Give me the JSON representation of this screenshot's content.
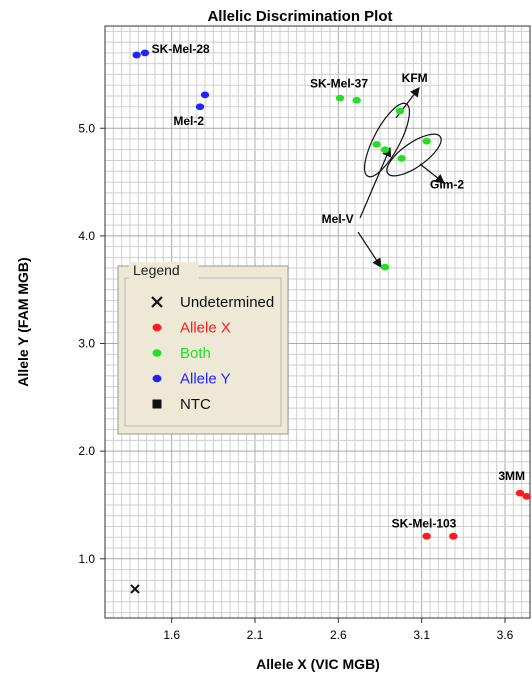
{
  "chart_data": {
    "type": "scatter",
    "title": "Allelic Discrimination Plot",
    "xlabel": "Allele X (VIC MGB)",
    "ylabel": "Allele Y (FAM MGB)",
    "xlim": [
      1.2,
      3.75
    ],
    "ylim": [
      0.45,
      5.95
    ],
    "xticks": [
      "1.6",
      "2.1",
      "2.6",
      "3.1",
      "3.6"
    ],
    "yticks": [
      "1.0",
      "2.0",
      "3.0",
      "4.0",
      "5.0"
    ],
    "grid": true,
    "legend": {
      "title": "Legend",
      "placement": "center-left",
      "items": [
        {
          "label": "Undetermined",
          "color": "#111111",
          "marker": "x"
        },
        {
          "label": "Allele X",
          "color": "#ff1a1a",
          "marker": "dot"
        },
        {
          "label": "Both",
          "color": "#22e022",
          "marker": "dot"
        },
        {
          "label": "Allele Y",
          "color": "#2222ff",
          "marker": "dot"
        },
        {
          "label": "NTC",
          "color": "#111111",
          "marker": "square"
        }
      ]
    },
    "series": [
      {
        "category": "Undetermined",
        "color": "#111111",
        "marker": "x",
        "points": [
          [
            1.38,
            0.72
          ]
        ]
      },
      {
        "category": "Allele X",
        "color": "#ff1a1a",
        "marker": "dot",
        "points": [
          [
            3.13,
            1.21
          ],
          [
            3.29,
            1.21
          ],
          [
            3.69,
            1.61
          ],
          [
            3.73,
            1.58
          ]
        ]
      },
      {
        "category": "Both",
        "color": "#22e022",
        "marker": "dot",
        "points": [
          [
            2.61,
            5.28
          ],
          [
            2.71,
            5.26
          ],
          [
            2.97,
            5.16
          ],
          [
            2.83,
            4.85
          ],
          [
            2.88,
            4.8
          ],
          [
            3.13,
            4.88
          ],
          [
            2.98,
            4.72
          ],
          [
            2.88,
            3.71
          ]
        ]
      },
      {
        "category": "Allele Y",
        "color": "#2222ff",
        "marker": "dot",
        "points": [
          [
            1.39,
            5.68
          ],
          [
            1.44,
            5.7
          ],
          [
            1.77,
            5.2
          ],
          [
            1.8,
            5.31
          ]
        ]
      }
    ],
    "annotations": [
      {
        "text": "SK-Mel-28",
        "x": 1.48,
        "y": 5.7
      },
      {
        "text": "Mel-2",
        "x": 1.61,
        "y": 5.03
      },
      {
        "text": "SK-Mel-37",
        "x": 2.43,
        "y": 5.38
      },
      {
        "text": "KFM",
        "x": 2.98,
        "y": 5.43
      },
      {
        "text": "Glm-2",
        "x": 3.15,
        "y": 4.44
      },
      {
        "text": "Mel-V",
        "x": 2.5,
        "y": 4.12
      },
      {
        "text": "3MM",
        "x": 3.56,
        "y": 1.73
      },
      {
        "text": "SK-Mel-103",
        "x": 2.92,
        "y": 1.29
      }
    ]
  }
}
